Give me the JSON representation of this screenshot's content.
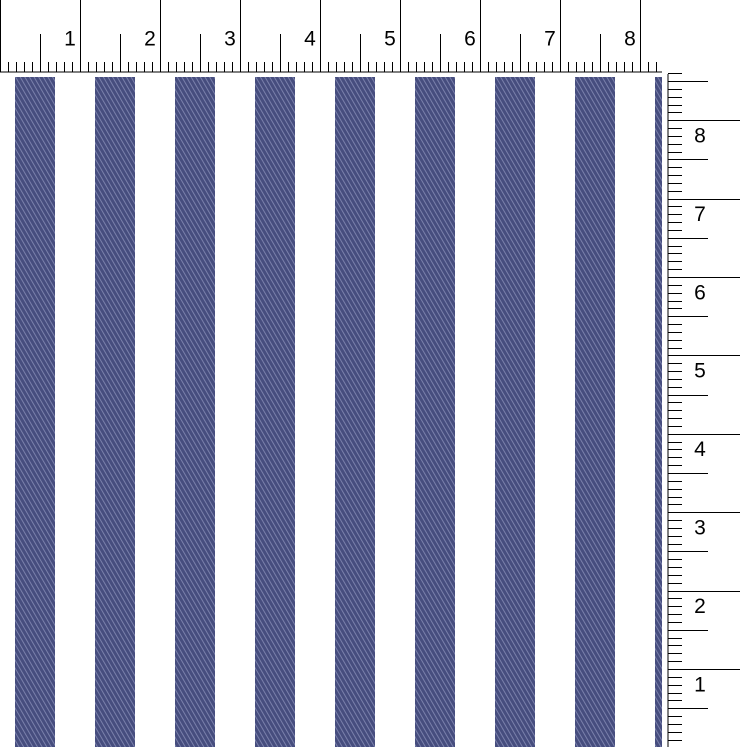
{
  "top_ruler": {
    "labels": [
      1,
      2,
      3,
      4,
      5,
      6,
      7,
      8
    ]
  },
  "side_ruler": {
    "labels": [
      8,
      7,
      6,
      5,
      4,
      3,
      2,
      1
    ]
  }
}
